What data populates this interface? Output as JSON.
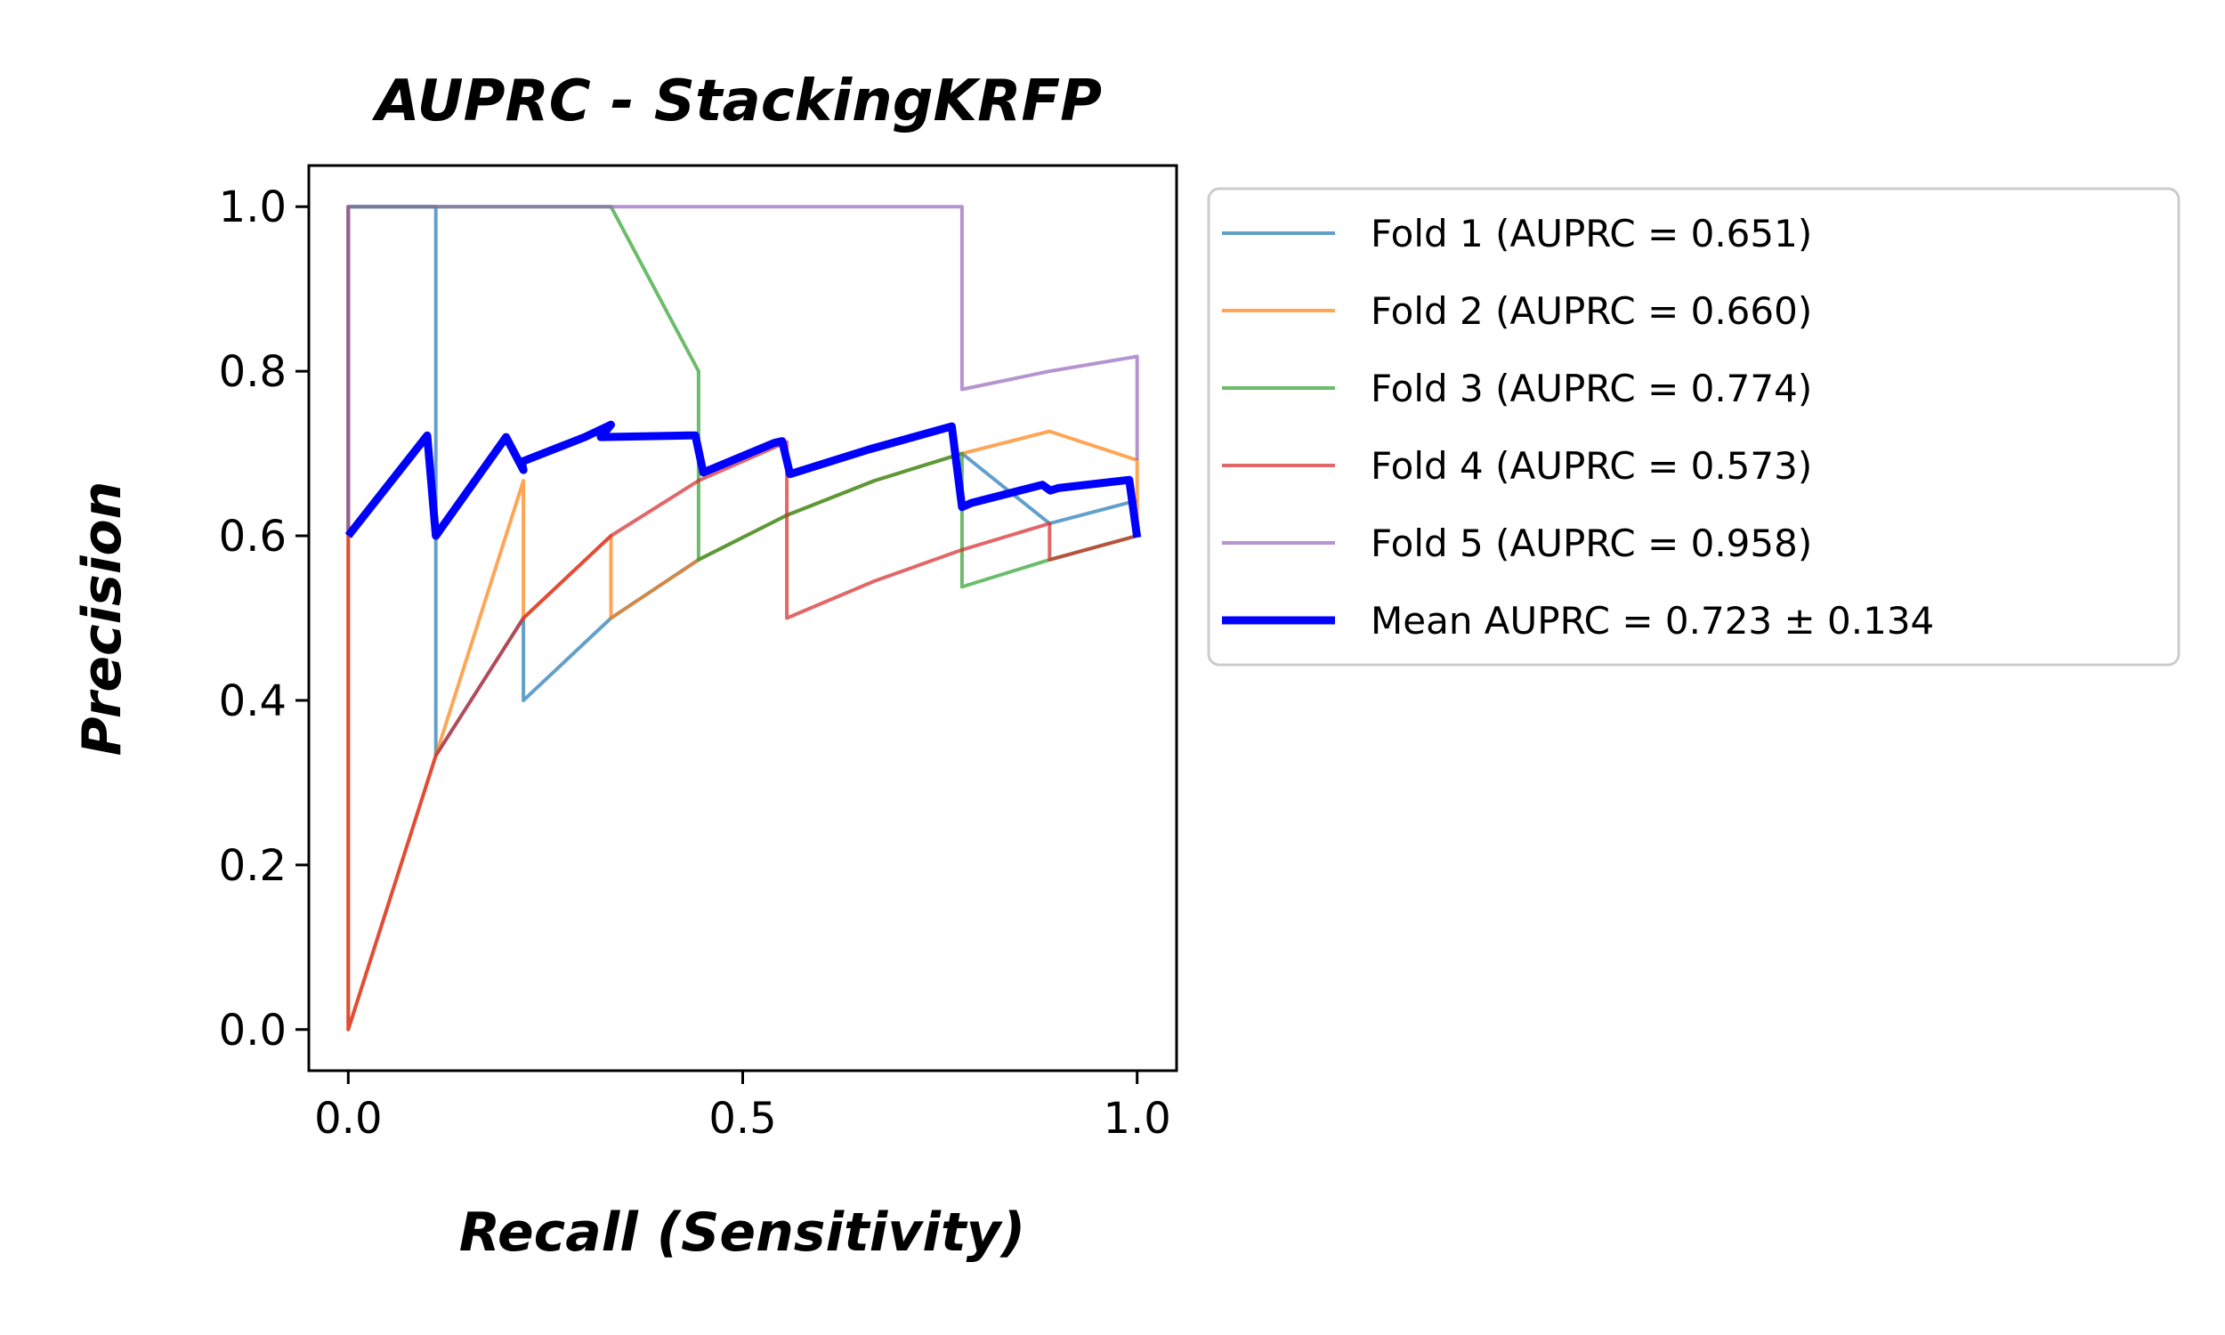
{
  "chart_data": {
    "type": "line",
    "title": "AUPRC - StackingKRFP",
    "xlabel": "Recall (Sensitivity)",
    "ylabel": "Precision",
    "xlim": [
      -0.05,
      1.05
    ],
    "ylim": [
      -0.05,
      1.05
    ],
    "xticks": [
      0.0,
      0.5,
      1.0
    ],
    "yticks": [
      0.0,
      0.2,
      0.4,
      0.6,
      0.8,
      1.0
    ],
    "xtick_labels": [
      "0.0",
      "0.5",
      "1.0"
    ],
    "ytick_labels": [
      "0.0",
      "0.2",
      "0.4",
      "0.6",
      "0.8",
      "1.0"
    ],
    "grid": false,
    "legend_position": "outside-right-top",
    "series": [
      {
        "name": "Fold 1 (AUPRC = 0.651)",
        "color": "#1f77b4",
        "x": [
          0,
          0,
          0.111,
          0.111,
          0.222,
          0.222,
          0.333,
          0.444,
          0.556,
          0.667,
          0.778,
          0.889,
          1.0
        ],
        "y": [
          0.6,
          1.0,
          1.0,
          0.333,
          0.5,
          0.4,
          0.5,
          0.571,
          0.625,
          0.667,
          0.7,
          0.615,
          0.643
        ]
      },
      {
        "name": "Fold 2 (AUPRC = 0.660)",
        "color": "#ff7f0e",
        "x": [
          0,
          0,
          0.111,
          0.222,
          0.222,
          0.333,
          0.333,
          0.444,
          0.556,
          0.667,
          0.778,
          0.889,
          1.0,
          1.0
        ],
        "y": [
          0.6,
          0.0,
          0.333,
          0.667,
          0.5,
          0.6,
          0.5,
          0.571,
          0.625,
          0.667,
          0.7,
          0.727,
          0.692,
          0.6
        ]
      },
      {
        "name": "Fold 3 (AUPRC = 0.774)",
        "color": "#2ca02c",
        "x": [
          0,
          0,
          0.333,
          0.444,
          0.444,
          0.556,
          0.667,
          0.778,
          0.778,
          0.889,
          0.889,
          1.0
        ],
        "y": [
          0.6,
          1.0,
          1.0,
          0.8,
          0.571,
          0.625,
          0.667,
          0.7,
          0.538,
          0.571,
          0.571,
          0.6
        ]
      },
      {
        "name": "Fold 4 (AUPRC = 0.573)",
        "color": "#d62728",
        "x": [
          0,
          0,
          0,
          0.111,
          0.222,
          0.333,
          0.444,
          0.556,
          0.556,
          0.667,
          0.778,
          0.889,
          0.889,
          1.0
        ],
        "y": [
          0.6,
          1.0,
          0.0,
          0.333,
          0.5,
          0.6,
          0.667,
          0.714,
          0.5,
          0.545,
          0.583,
          0.615,
          0.571,
          0.6
        ]
      },
      {
        "name": "Fold 5 (AUPRC = 0.958)",
        "color": "#9467bd",
        "x": [
          0,
          0,
          0.778,
          0.778,
          0.889,
          1.0,
          1.0
        ],
        "y": [
          0.6,
          1.0,
          1.0,
          0.778,
          0.8,
          0.818,
          0.692
        ]
      },
      {
        "name": "Mean AUPRC = 0.723 ± 0.134",
        "color": "#0000ff",
        "x": [
          0,
          0.1,
          0.111,
          0.2,
          0.222,
          0.22,
          0.3,
          0.333,
          0.32,
          0.43,
          0.44,
          0.45,
          0.54,
          0.55,
          0.56,
          0.66,
          0.765,
          0.778,
          0.79,
          0.88,
          0.89,
          0.9,
          0.99,
          1.0
        ],
        "y": [
          0.6,
          0.722,
          0.6,
          0.72,
          0.68,
          0.69,
          0.72,
          0.735,
          0.72,
          0.722,
          0.722,
          0.677,
          0.713,
          0.715,
          0.675,
          0.705,
          0.733,
          0.635,
          0.64,
          0.662,
          0.655,
          0.658,
          0.668,
          0.598
        ]
      }
    ]
  }
}
